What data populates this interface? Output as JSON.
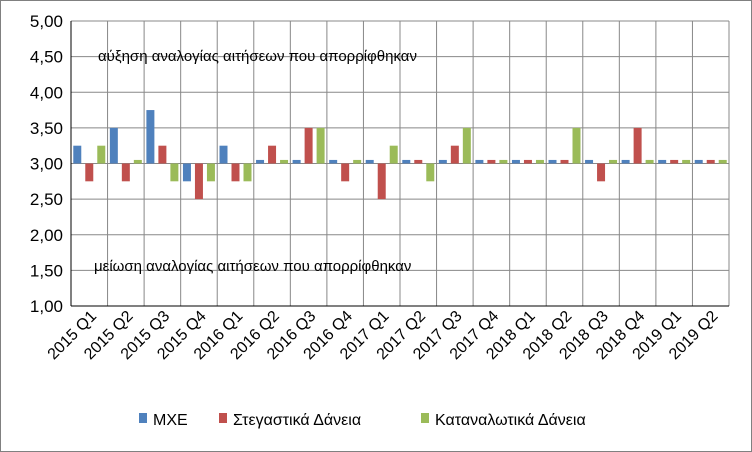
{
  "chart_data": {
    "type": "bar",
    "categories": [
      "2015 Q1",
      "2015 Q2",
      "2015 Q3",
      "2015 Q4",
      "2016 Q1",
      "2016 Q2",
      "2016 Q3",
      "2016 Q4",
      "2017 Q1",
      "2017 Q2",
      "2017 Q3",
      "2017 Q4",
      "2018 Q1",
      "2018 Q2",
      "2018 Q3",
      "2018 Q4",
      "2019 Q1",
      "2019 Q2"
    ],
    "series": [
      {
        "name": "ΜΧΕ",
        "color": "#4F81BD",
        "values": [
          3.25,
          3.5,
          3.75,
          2.75,
          3.25,
          3.05,
          3.05,
          3.05,
          3.05,
          3.05,
          3.05,
          3.05,
          3.05,
          3.05,
          3.05,
          3.05,
          3.05,
          3.05
        ]
      },
      {
        "name": "Στεγαστικά Δάνεια",
        "color": "#C0504D",
        "values": [
          2.75,
          2.75,
          3.25,
          2.5,
          2.75,
          3.25,
          3.5,
          2.75,
          2.5,
          3.05,
          3.25,
          3.05,
          3.05,
          3.05,
          2.75,
          3.5,
          3.05,
          3.05
        ]
      },
      {
        "name": "Καταναλωτικά Δάνεια",
        "color": "#9BBB59",
        "values": [
          3.25,
          3.05,
          2.75,
          2.75,
          2.75,
          3.05,
          3.5,
          3.05,
          3.25,
          2.75,
          3.5,
          3.05,
          3.05,
          3.5,
          3.05,
          3.05,
          3.05,
          3.05
        ]
      }
    ],
    "baseline": 3.0,
    "ylim": [
      1.0,
      5.0
    ],
    "yticks": [
      "1,00",
      "1,50",
      "2,00",
      "2,50",
      "3,00",
      "3,50",
      "4,00",
      "4,50",
      "5,00"
    ],
    "grid": true,
    "legend_position": "bottom",
    "annotations": {
      "top": "αύξηση αναλογίας αιτήσεων που απορρίφθηκαν",
      "bottom": "μείωση αναλογίας αιτήσεων που απορρίφθηκαν"
    }
  }
}
